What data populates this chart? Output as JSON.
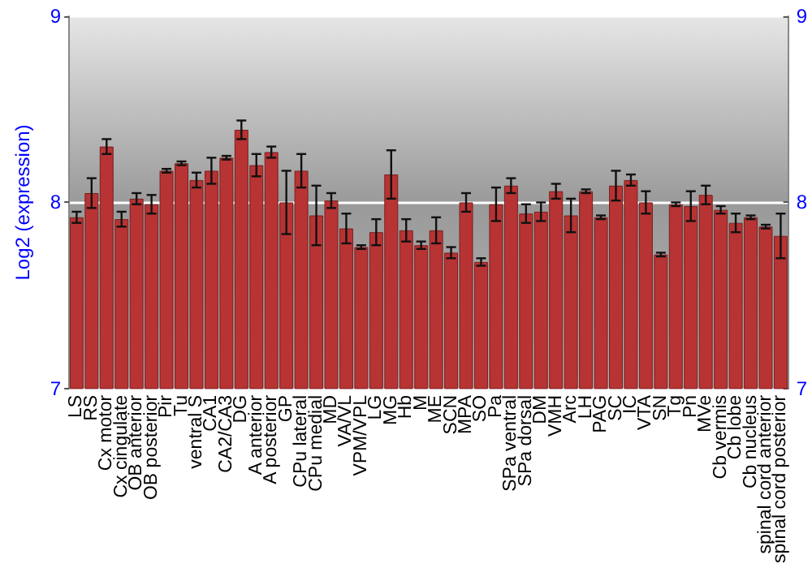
{
  "chart_data": {
    "type": "bar",
    "ylabel": "Log2 (expression)",
    "categories": [
      "LS",
      "RS",
      "Cx motor",
      "Cx cingulate",
      "OB anterior",
      "OB posterior",
      "Pir",
      "Tu",
      "ventral S",
      "CA1",
      "CA2/CA3",
      "DG",
      "A anterior",
      "A posterior",
      "GP",
      "CPu lateral",
      "CPu medial",
      "MD",
      "VA/VL",
      "VPM/VPL",
      "LG",
      "MG",
      "Hb",
      "M",
      "ME",
      "SCN",
      "MPA",
      "SO",
      "Pa",
      "SPa ventral",
      "SPa dorsal",
      "DM",
      "VMH",
      "Arc",
      "LH",
      "PAG",
      "SC",
      "IC",
      "VTA",
      "SN",
      "Tg",
      "Pn",
      "MVe",
      "Cb vermis",
      "Cb lobe",
      "Cb nucleus",
      "spinal cord anterior",
      "spinal cord posterior"
    ],
    "values": [
      7.92,
      8.05,
      8.3,
      7.91,
      8.02,
      7.99,
      8.17,
      8.21,
      8.12,
      8.17,
      8.24,
      8.39,
      8.2,
      8.27,
      8.0,
      8.17,
      7.93,
      8.01,
      7.86,
      7.76,
      7.84,
      8.15,
      7.85,
      7.77,
      7.85,
      7.73,
      8.0,
      7.68,
      7.99,
      8.09,
      7.94,
      7.95,
      8.06,
      7.93,
      8.06,
      7.92,
      8.09,
      8.12,
      8.0,
      7.72,
      7.99,
      7.98,
      8.04,
      7.96,
      7.89,
      7.92,
      7.87,
      7.82
    ],
    "errors": [
      0.03,
      0.08,
      0.04,
      0.04,
      0.03,
      0.05,
      0.01,
      0.01,
      0.04,
      0.07,
      0.01,
      0.05,
      0.06,
      0.03,
      0.17,
      0.09,
      0.16,
      0.04,
      0.08,
      0.01,
      0.07,
      0.13,
      0.06,
      0.02,
      0.07,
      0.03,
      0.05,
      0.02,
      0.09,
      0.04,
      0.05,
      0.05,
      0.04,
      0.09,
      0.01,
      0.01,
      0.08,
      0.03,
      0.06,
      0.01,
      0.01,
      0.08,
      0.05,
      0.02,
      0.05,
      0.01,
      0.01,
      0.12
    ],
    "color": "#b83333",
    "ylim": [
      7,
      9
    ],
    "yticks": [
      7,
      8,
      9
    ],
    "y2lim": [
      7,
      9
    ],
    "y2ticks": [
      7,
      8,
      9
    ],
    "grid": "y"
  }
}
